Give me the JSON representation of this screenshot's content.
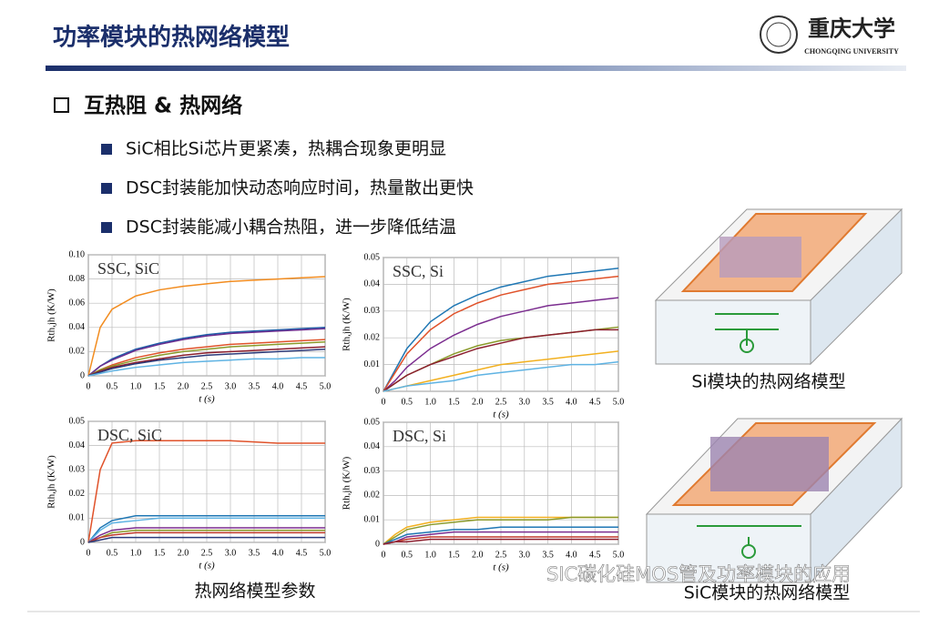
{
  "header": {
    "title": "功率模块的热网络模型",
    "logo_text": "重庆大学",
    "logo_subtitle": "CHONGQING UNIVERSITY"
  },
  "section": {
    "heading": "互热阻 & 热网络",
    "bullets": [
      "SiC相比Si芯片更紧凑，热耦合现象更明显",
      "DSC封装能加快动态响应时间，热量散出更快",
      "DSC封装能减小耦合热阻，进一步降低结温"
    ]
  },
  "chart_data": [
    {
      "type": "line",
      "annotation": "SSC, SiC",
      "x_label": "t (s)",
      "y_label": "Rth,jh (K/W)",
      "x": [
        0,
        0.25,
        0.5,
        1,
        1.5,
        2,
        2.5,
        3,
        3.5,
        4,
        4.5,
        5
      ],
      "xlim": [
        0,
        5
      ],
      "xticks": [
        0,
        0.5,
        {
          "value": 1,
          "label": "1.0"
        },
        1.5,
        {
          "value": 2,
          "label": "2.0"
        },
        2.5,
        {
          "value": 3,
          "label": "3.0"
        },
        3.5,
        {
          "value": 4,
          "label": "4.0"
        },
        4.5,
        {
          "value": 5,
          "label": "5.0"
        }
      ],
      "ylim": [
        0,
        0.1
      ],
      "yticks": [
        0,
        0.02,
        0.04,
        0.06,
        0.08,
        {
          "value": 0.1,
          "label": "0.10"
        }
      ],
      "grid": true,
      "series": [
        {
          "color": "#f28c1f",
          "values": [
            0,
            0.04,
            0.055,
            0.066,
            0.071,
            0.074,
            0.076,
            0.078,
            0.079,
            0.08,
            0.081,
            0.082
          ]
        },
        {
          "color": "#1f5fa8",
          "values": [
            0,
            0.008,
            0.014,
            0.022,
            0.027,
            0.031,
            0.034,
            0.036,
            0.037,
            0.038,
            0.039,
            0.04
          ]
        },
        {
          "color": "#6b2d8f",
          "values": [
            0,
            0.008,
            0.013,
            0.021,
            0.026,
            0.03,
            0.033,
            0.035,
            0.036,
            0.037,
            0.038,
            0.039
          ]
        },
        {
          "color": "#e0522a",
          "values": [
            0,
            0.005,
            0.009,
            0.015,
            0.019,
            0.022,
            0.024,
            0.026,
            0.027,
            0.028,
            0.029,
            0.03
          ]
        },
        {
          "color": "#8a9a2a",
          "values": [
            0,
            0.005,
            0.008,
            0.013,
            0.017,
            0.02,
            0.022,
            0.024,
            0.025,
            0.026,
            0.027,
            0.028
          ]
        },
        {
          "color": "#8b1e2e",
          "values": [
            0,
            0.004,
            0.007,
            0.011,
            0.014,
            0.017,
            0.019,
            0.02,
            0.021,
            0.022,
            0.023,
            0.024
          ]
        },
        {
          "color": "#2b3a7a",
          "values": [
            0,
            0.003,
            0.006,
            0.01,
            0.013,
            0.015,
            0.017,
            0.018,
            0.019,
            0.02,
            0.021,
            0.022
          ]
        },
        {
          "color": "#5fb3e3",
          "values": [
            0,
            0.002,
            0.004,
            0.007,
            0.009,
            0.011,
            0.012,
            0.013,
            0.014,
            0.014,
            0.015,
            0.015
          ]
        }
      ]
    },
    {
      "type": "line",
      "annotation": "SSC, Si",
      "x_label": "t (s)",
      "y_label": "Rth,jh (K/W)",
      "x": [
        0,
        0.25,
        0.5,
        1,
        1.5,
        2,
        2.5,
        3,
        3.5,
        4,
        4.5,
        5
      ],
      "xlim": [
        0,
        5
      ],
      "xticks": [
        0,
        0.5,
        {
          "value": 1,
          "label": "1.0"
        },
        1.5,
        {
          "value": 2,
          "label": "2.0"
        },
        2.5,
        {
          "value": 3,
          "label": "3.0"
        },
        3.5,
        {
          "value": 4,
          "label": "4.0"
        },
        4.5,
        {
          "value": 5,
          "label": "5.0"
        }
      ],
      "ylim": [
        0,
        0.05
      ],
      "yticks": [
        0,
        0.01,
        0.02,
        0.03,
        0.04,
        0.05
      ],
      "grid": true,
      "series": [
        {
          "color": "#1f77b4",
          "values": [
            0,
            0.008,
            0.016,
            0.026,
            0.032,
            0.036,
            0.039,
            0.041,
            0.043,
            0.044,
            0.045,
            0.046
          ]
        },
        {
          "color": "#e0522a",
          "values": [
            0,
            0.007,
            0.014,
            0.023,
            0.029,
            0.033,
            0.036,
            0.038,
            0.04,
            0.041,
            0.042,
            0.043
          ]
        },
        {
          "color": "#7b2d8f",
          "values": [
            0,
            0.004,
            0.009,
            0.016,
            0.021,
            0.025,
            0.028,
            0.03,
            0.032,
            0.033,
            0.034,
            0.035
          ]
        },
        {
          "color": "#8a9a2a",
          "values": [
            0,
            0.003,
            0.006,
            0.01,
            0.014,
            0.017,
            0.019,
            0.02,
            0.021,
            0.022,
            0.023,
            0.024
          ]
        },
        {
          "color": "#8b1e2e",
          "values": [
            0,
            0.003,
            0.006,
            0.01,
            0.013,
            0.016,
            0.018,
            0.02,
            0.021,
            0.022,
            0.023,
            0.023
          ]
        },
        {
          "color": "#f2b01f",
          "values": [
            0,
            0.001,
            0.002,
            0.004,
            0.006,
            0.008,
            0.01,
            0.011,
            0.012,
            0.013,
            0.014,
            0.015
          ]
        },
        {
          "color": "#5fb3e3",
          "values": [
            0,
            0.001,
            0.002,
            0.003,
            0.004,
            0.006,
            0.007,
            0.008,
            0.009,
            0.01,
            0.01,
            0.011
          ]
        }
      ]
    },
    {
      "type": "line",
      "annotation": "DSC, SiC",
      "x_label": "t (s)",
      "y_label": "Rth,jh (K/W)",
      "x": [
        0,
        0.25,
        0.5,
        1,
        1.5,
        2,
        2.5,
        3,
        3.5,
        4,
        4.5,
        5
      ],
      "xlim": [
        0,
        5
      ],
      "xticks": [
        0,
        0.5,
        {
          "value": 1,
          "label": "1.0"
        },
        1.5,
        {
          "value": 2,
          "label": "2.0"
        },
        2.5,
        {
          "value": 3,
          "label": "3.0"
        },
        3.5,
        {
          "value": 4,
          "label": "4.0"
        },
        4.5,
        {
          "value": 5,
          "label": "5.0"
        }
      ],
      "ylim": [
        0,
        0.05
      ],
      "yticks": [
        0,
        0.01,
        0.02,
        0.03,
        0.04,
        0.05
      ],
      "grid": true,
      "series": [
        {
          "color": "#e0522a",
          "values": [
            0,
            0.03,
            0.041,
            0.042,
            0.042,
            0.042,
            0.042,
            0.042,
            0.0415,
            0.041,
            0.041,
            0.041
          ]
        },
        {
          "color": "#1f77b4",
          "values": [
            0,
            0.006,
            0.009,
            0.011,
            0.011,
            0.011,
            0.011,
            0.011,
            0.011,
            0.011,
            0.011,
            0.011
          ]
        },
        {
          "color": "#5fb3e3",
          "values": [
            0,
            0.005,
            0.008,
            0.009,
            0.01,
            0.01,
            0.01,
            0.01,
            0.01,
            0.01,
            0.01,
            0.01
          ]
        },
        {
          "color": "#7b2d8f",
          "values": [
            0,
            0.003,
            0.005,
            0.006,
            0.006,
            0.006,
            0.006,
            0.006,
            0.006,
            0.006,
            0.006,
            0.006
          ]
        },
        {
          "color": "#8a9a2a",
          "values": [
            0,
            0.002,
            0.004,
            0.005,
            0.005,
            0.005,
            0.005,
            0.005,
            0.005,
            0.005,
            0.005,
            0.005
          ]
        },
        {
          "color": "#c0392b",
          "values": [
            0,
            0.002,
            0.003,
            0.004,
            0.004,
            0.004,
            0.004,
            0.004,
            0.004,
            0.004,
            0.004,
            0.004
          ]
        },
        {
          "color": "#2b3a7a",
          "values": [
            0,
            0.001,
            0.002,
            0.002,
            0.002,
            0.002,
            0.002,
            0.002,
            0.002,
            0.002,
            0.002,
            0.002
          ]
        }
      ]
    },
    {
      "type": "line",
      "annotation": "DSC, Si",
      "x_label": "t (s)",
      "y_label": "Rth,jh (K/W)",
      "x": [
        0,
        0.25,
        0.5,
        1,
        1.5,
        2,
        2.5,
        3,
        3.5,
        4,
        4.5,
        5
      ],
      "xlim": [
        0,
        5
      ],
      "xticks": [
        0,
        0.5,
        {
          "value": 1,
          "label": "1.0"
        },
        1.5,
        {
          "value": 2,
          "label": "2.0"
        },
        2.5,
        {
          "value": 3,
          "label": "3.0"
        },
        3.5,
        {
          "value": 4,
          "label": "4.0"
        },
        4.5,
        {
          "value": 5,
          "label": "5.0"
        }
      ],
      "ylim": [
        0,
        0.05
      ],
      "yticks": [
        0,
        0.01,
        0.02,
        0.03,
        0.04,
        0.05
      ],
      "grid": true,
      "series": [
        {
          "color": "#f2b01f",
          "values": [
            0,
            0.004,
            0.007,
            0.009,
            0.01,
            0.011,
            0.011,
            0.011,
            0.011,
            0.011,
            0.011,
            0.011
          ]
        },
        {
          "color": "#8a9a2a",
          "values": [
            0,
            0.003,
            0.006,
            0.008,
            0.009,
            0.01,
            0.01,
            0.01,
            0.01,
            0.011,
            0.011,
            0.011
          ]
        },
        {
          "color": "#1f77b4",
          "values": [
            0,
            0.002,
            0.004,
            0.005,
            0.006,
            0.006,
            0.007,
            0.007,
            0.007,
            0.007,
            0.007,
            0.007
          ]
        },
        {
          "color": "#7b2d8f",
          "values": [
            0,
            0.001,
            0.003,
            0.004,
            0.005,
            0.005,
            0.005,
            0.005,
            0.005,
            0.005,
            0.005,
            0.005
          ]
        },
        {
          "color": "#c0392b",
          "values": [
            0,
            0.001,
            0.002,
            0.003,
            0.003,
            0.003,
            0.003,
            0.003,
            0.003,
            0.003,
            0.003,
            0.003
          ]
        },
        {
          "color": "#8b1e2e",
          "values": [
            0,
            0.001,
            0.001,
            0.002,
            0.002,
            0.002,
            0.002,
            0.002,
            0.002,
            0.002,
            0.002,
            0.002
          ]
        }
      ]
    }
  ],
  "captions": {
    "charts": "热网络模型参数",
    "si_model": "Si模块的热网络模型",
    "sic_model": "SiC模块的热网络模型"
  },
  "watermark": "SIC碳化硅MOS管及功率模块的应用"
}
